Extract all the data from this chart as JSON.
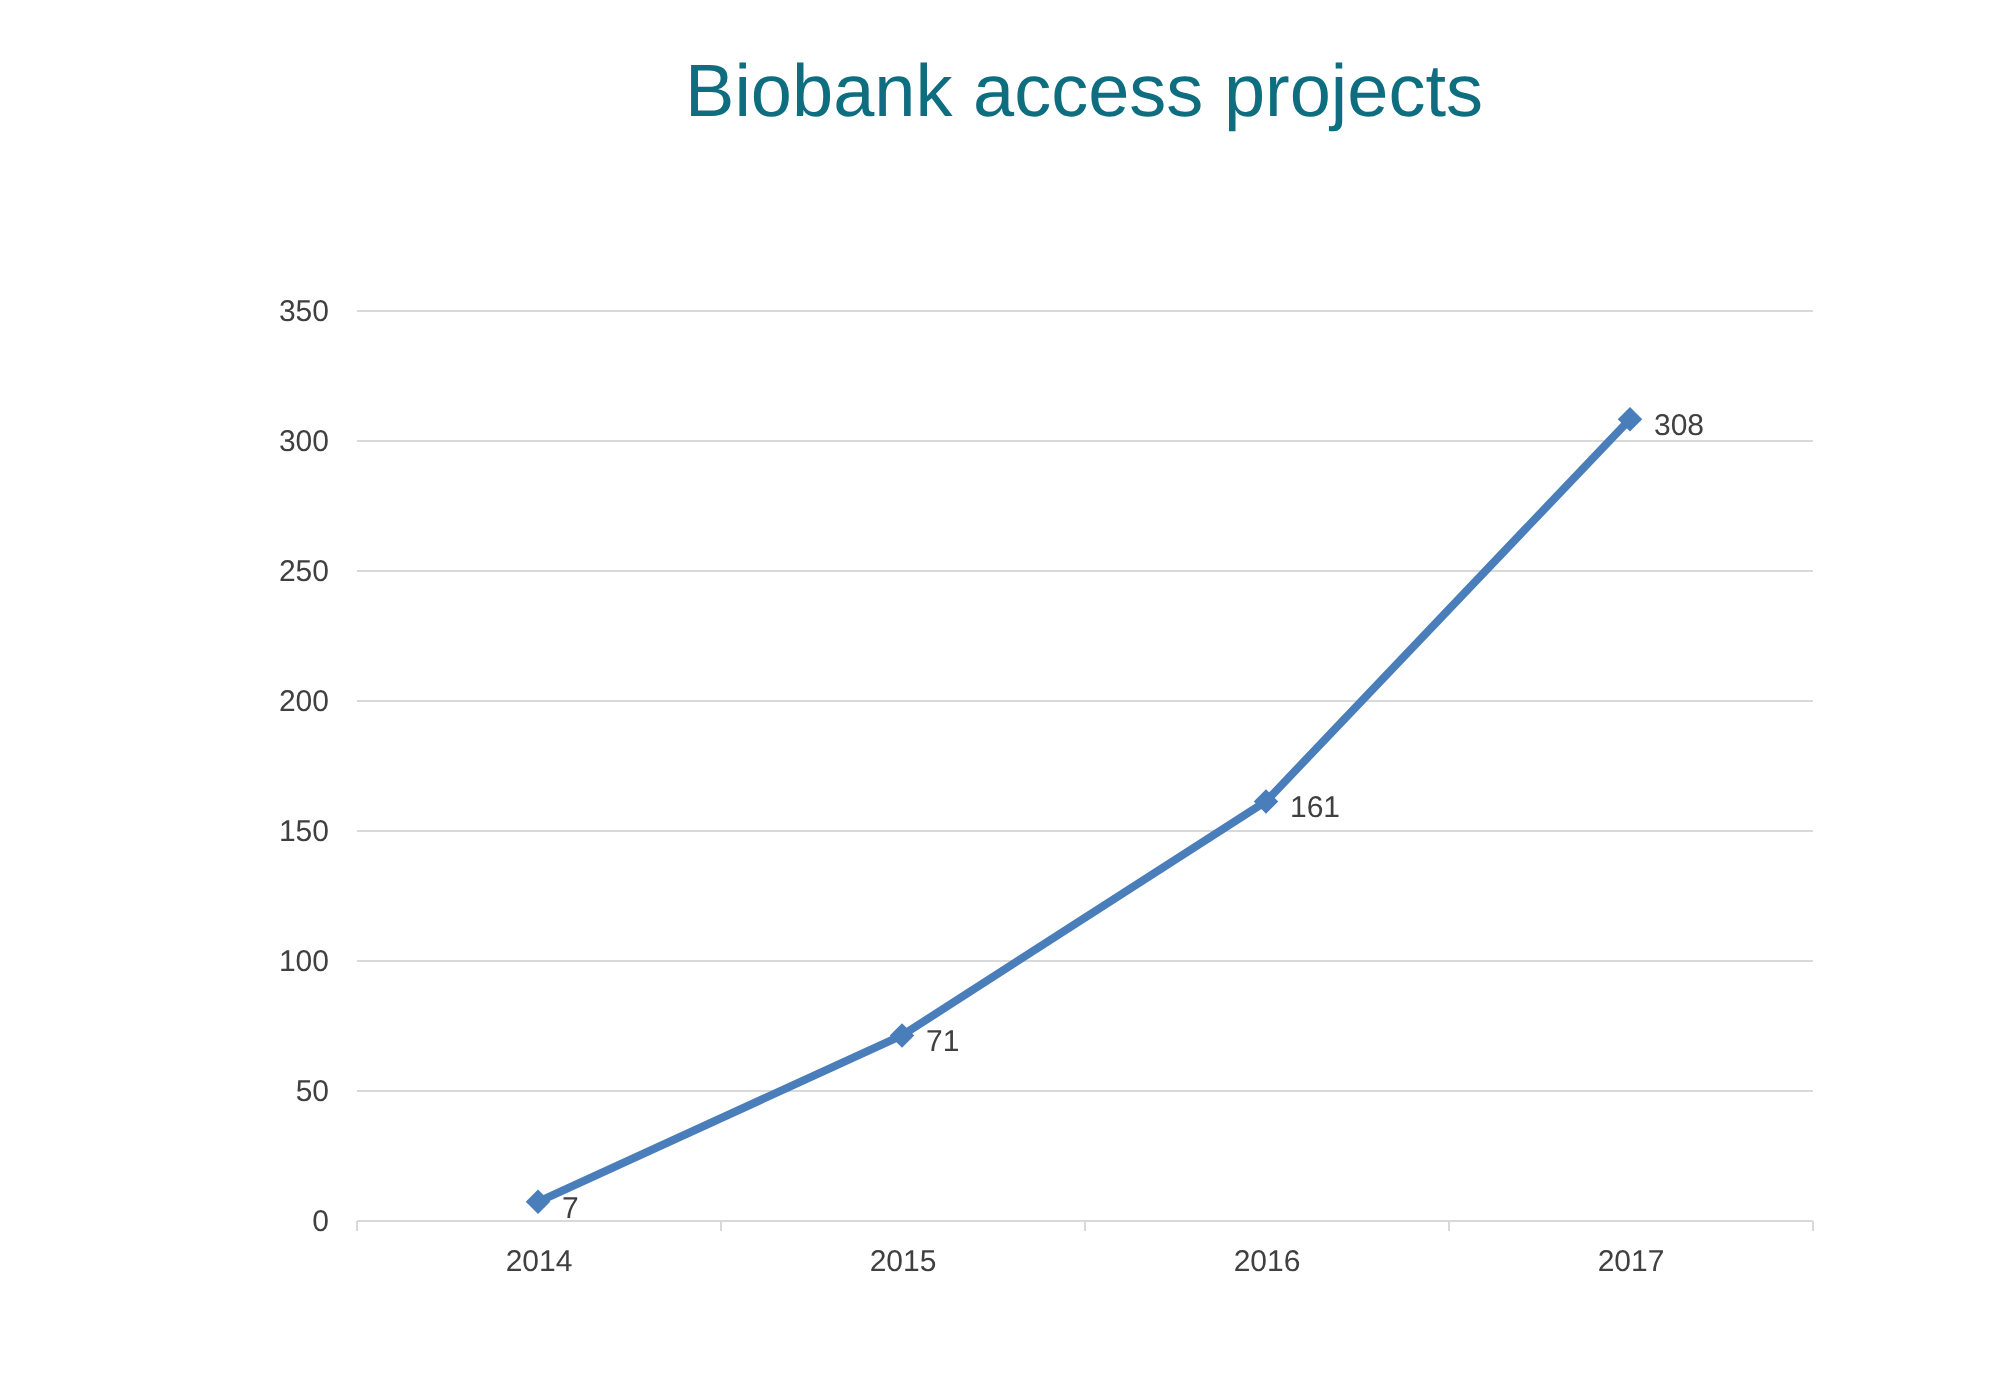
{
  "chart_data": {
    "type": "line",
    "title": "Biobank access projects",
    "categories": [
      "2014",
      "2015",
      "2016",
      "2017"
    ],
    "series": [
      {
        "color": "#4a7ebb",
        "values": [
          7,
          71,
          161,
          308
        ]
      }
    ],
    "ylim": [
      0,
      350
    ],
    "yticks": [
      0,
      50,
      100,
      150,
      200,
      250,
      300,
      350
    ],
    "grid": "y",
    "marker": "diamond",
    "line_style": "solid",
    "data_labels": true
  }
}
